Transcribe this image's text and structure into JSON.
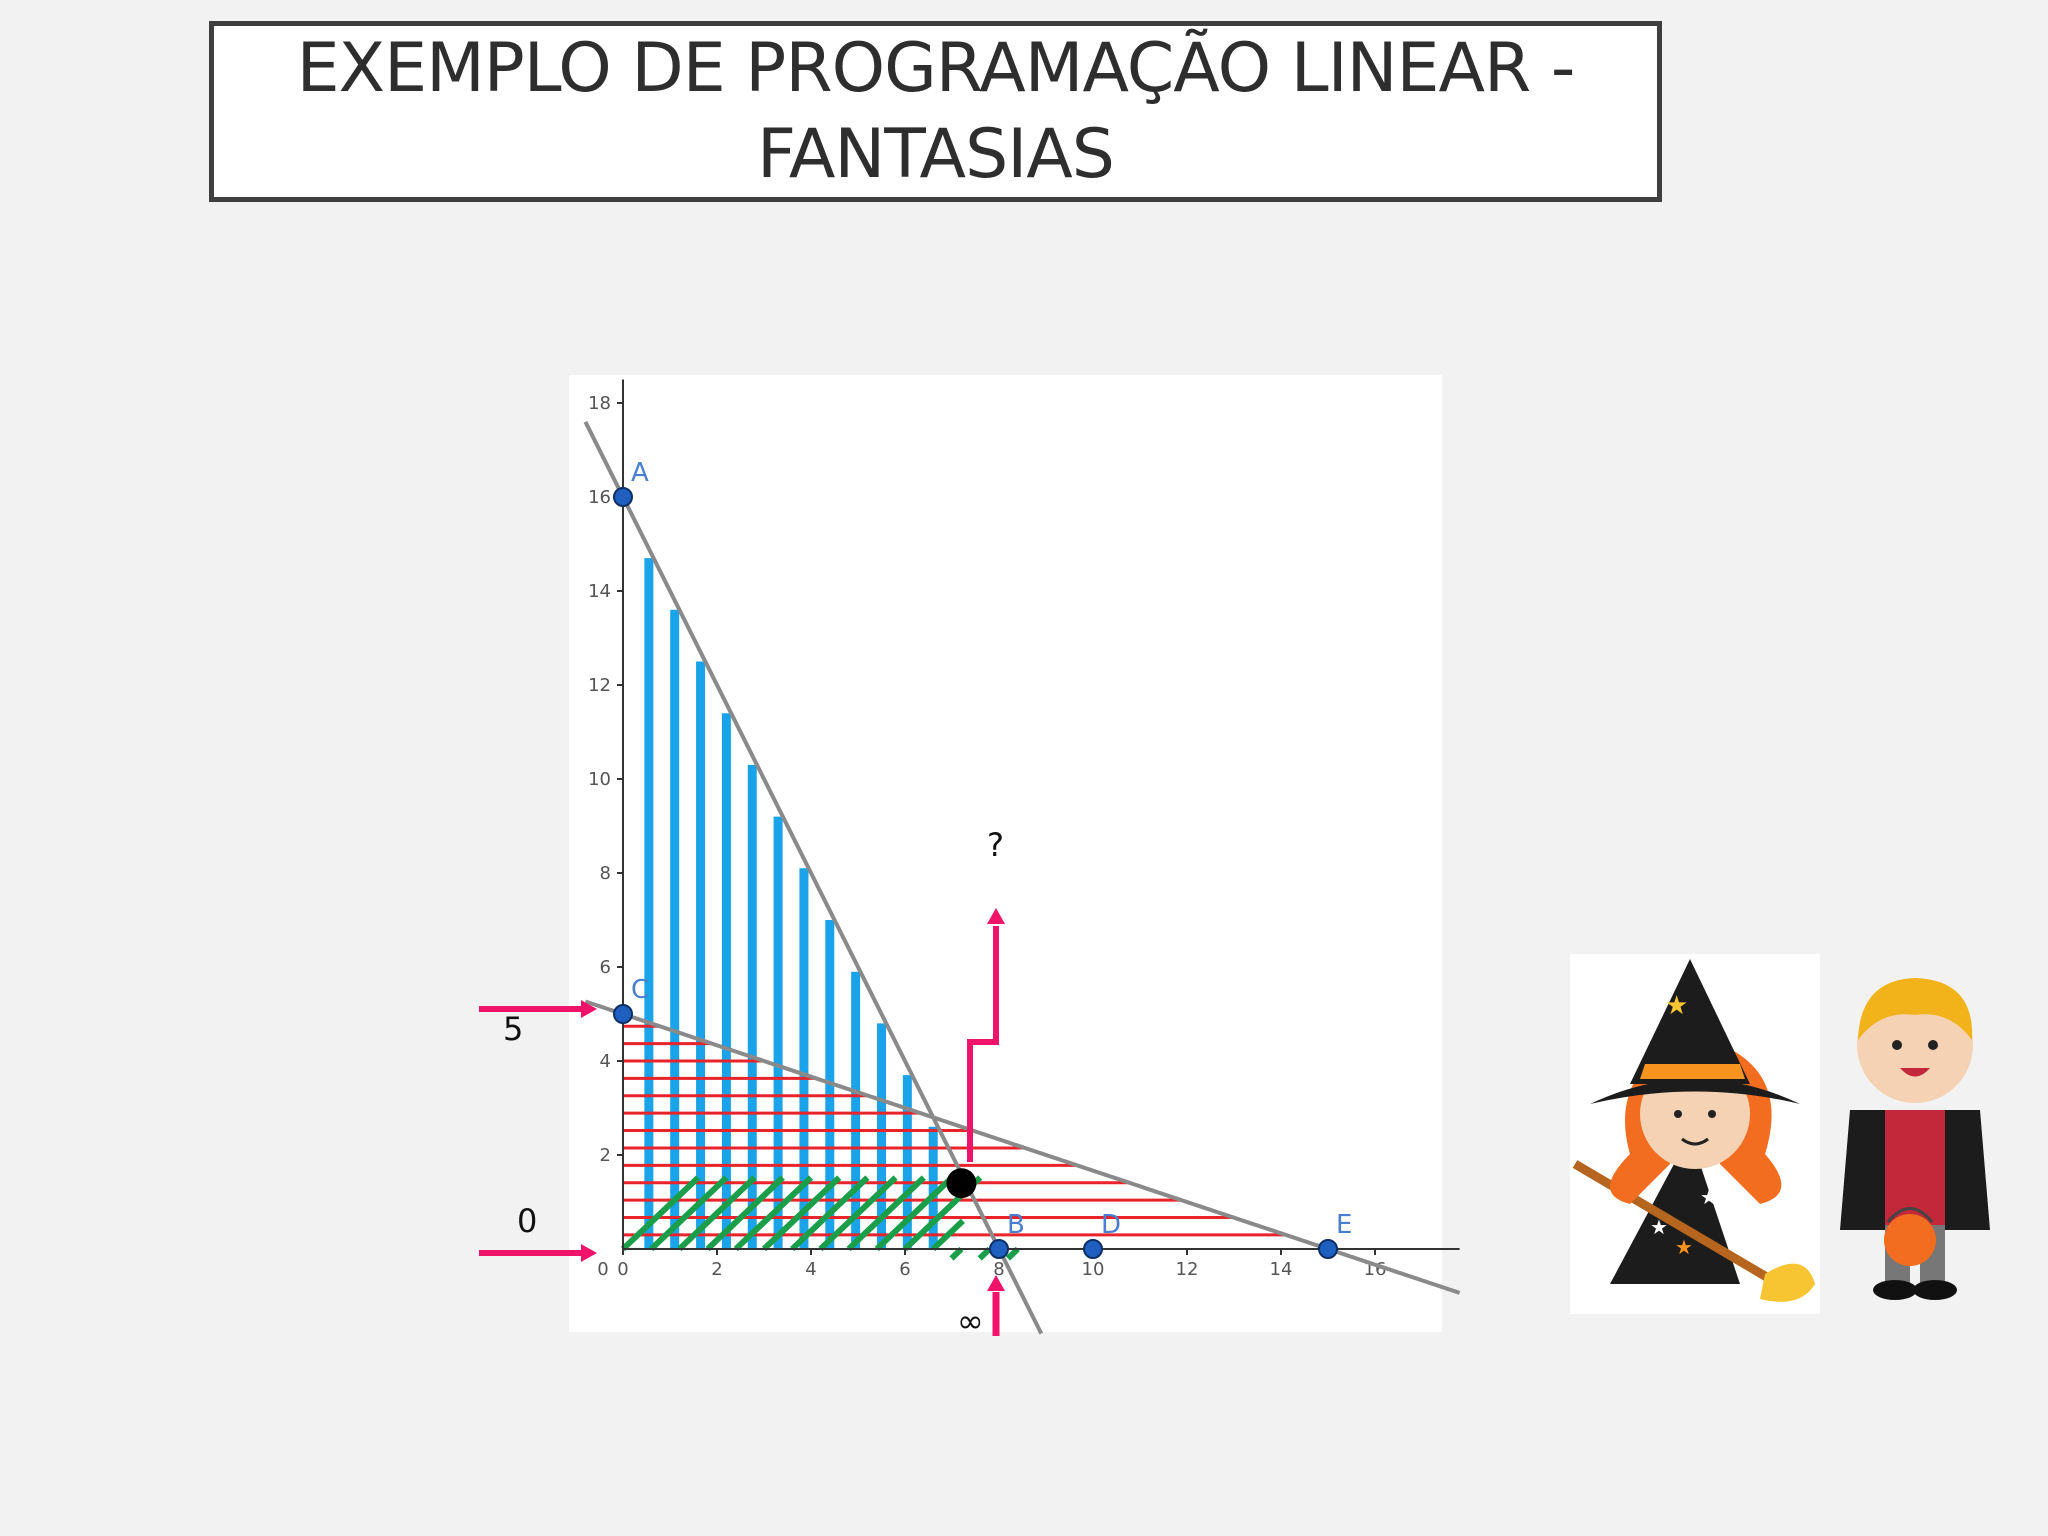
{
  "title": {
    "line1": "EXEMPLO DE PROGRAMAÇÃO LINEAR -",
    "line2": "FANTASIAS"
  },
  "chart_data": {
    "type": "line",
    "xlim": [
      -0.8,
      17.8
    ],
    "ylim": [
      -1.8,
      18.5
    ],
    "x_ticks": [
      0,
      2,
      4,
      6,
      8,
      10,
      12,
      14,
      16
    ],
    "y_ticks": [
      2,
      4,
      6,
      8,
      10,
      12,
      14,
      16,
      18
    ],
    "origin_label": "0",
    "lines": [
      {
        "x1": 0,
        "y1": 16,
        "x2": 8,
        "y2": 0
      },
      {
        "x1": 0,
        "y1": 5,
        "x2": 15,
        "y2": 0
      }
    ],
    "points": [
      {
        "label": "A",
        "x": 0,
        "y": 16
      },
      {
        "label": "C",
        "x": 0,
        "y": 5
      },
      {
        "label": "B",
        "x": 8,
        "y": 0
      },
      {
        "label": "D",
        "x": 10,
        "y": 0
      },
      {
        "label": "E",
        "x": 15,
        "y": 0
      }
    ],
    "optimum": {
      "x": 7.2,
      "y": 1.4
    },
    "hatch_colors": {
      "blue": "#1aa3e8",
      "red": "#e8232a",
      "green": "#1a9e4a"
    },
    "line_color": "#8a8a8a",
    "point_color": "#1f5fbf"
  },
  "annotations": {
    "question": "?",
    "left_top": "5",
    "left_bottom": "0",
    "bottom": "∞"
  },
  "arrow_color": "#f0136a"
}
